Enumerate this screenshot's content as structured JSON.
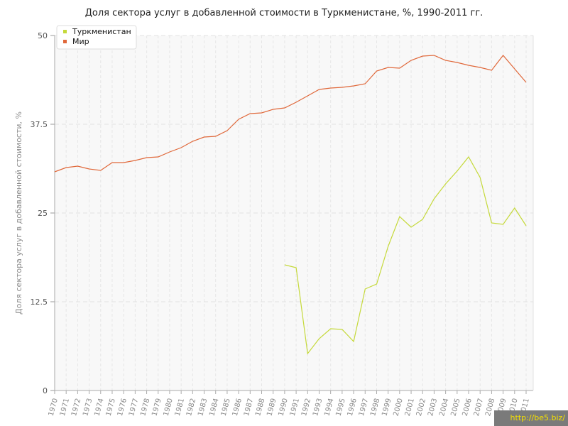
{
  "chart_data": {
    "type": "line",
    "title": "Доля сектора услуг в добавленной стоимости в Туркменистане, %, 1990-2011 гг.",
    "ylabel": "Доля сектора услуг в добавленной стоимости, %",
    "xlabel": "",
    "ylim": [
      0,
      50
    ],
    "yticks": [
      "0",
      "12.5",
      "25",
      "37.5",
      "50"
    ],
    "x": [
      "1970",
      "1971",
      "1972",
      "1973",
      "1974",
      "1975",
      "1976",
      "1977",
      "1978",
      "1979",
      "1980",
      "1981",
      "1982",
      "1983",
      "1984",
      "1985",
      "1986",
      "1987",
      "1988",
      "1989",
      "1990",
      "1991",
      "1992",
      "1993",
      "1994",
      "1995",
      "1996",
      "1997",
      "1998",
      "1999",
      "2000",
      "2001",
      "2002",
      "2003",
      "2004",
      "2005",
      "2006",
      "2007",
      "2008",
      "2009",
      "2010",
      "2011"
    ],
    "legend_position": "top-left",
    "grid": true,
    "series": [
      {
        "name": "Туркменистан",
        "color": "#c5d93a",
        "values": [
          null,
          null,
          null,
          null,
          null,
          null,
          null,
          null,
          null,
          null,
          null,
          null,
          null,
          null,
          null,
          null,
          null,
          null,
          null,
          null,
          17.7,
          17.3,
          5.2,
          7.3,
          8.7,
          8.6,
          6.9,
          14.3,
          15.0,
          20.3,
          24.5,
          23.0,
          24.1,
          27.0,
          29.1,
          30.9,
          32.9,
          30.0,
          23.6,
          23.4,
          25.7,
          23.2
        ]
      },
      {
        "name": "Мир",
        "color": "#e0683a",
        "values": [
          30.8,
          31.4,
          31.6,
          31.2,
          31.0,
          32.1,
          32.1,
          32.4,
          32.8,
          32.9,
          33.6,
          34.2,
          35.1,
          35.7,
          35.8,
          36.6,
          38.2,
          39.0,
          39.1,
          39.6,
          39.8,
          40.6,
          41.5,
          42.4,
          42.6,
          42.7,
          42.9,
          43.2,
          45.0,
          45.5,
          45.4,
          46.5,
          47.1,
          47.2,
          46.5,
          46.2,
          45.8,
          45.5,
          45.1,
          47.2,
          45.3,
          43.4
        ]
      }
    ]
  },
  "watermark": "http://be5.biz/"
}
